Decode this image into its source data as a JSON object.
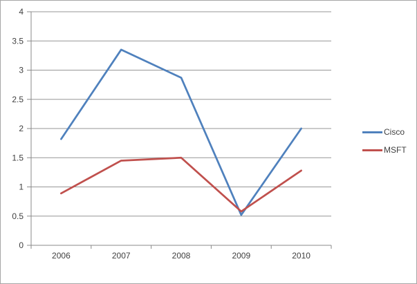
{
  "chart": {
    "background_color": "#ffffff",
    "border_color": "#a6a6a6",
    "gridline_color": "#969696",
    "axis_color": "#898989",
    "label_color": "#3f3f3f",
    "tick_label_font_size": 12
  },
  "chart_data": {
    "type": "line",
    "title": "",
    "categories": [
      "2006",
      "2007",
      "2008",
      "2009",
      "2010"
    ],
    "series": [
      {
        "name": "Cisco",
        "color": "#4F81BD",
        "values": [
          1.82,
          3.35,
          2.87,
          0.52,
          2.0
        ]
      },
      {
        "name": "MSFT",
        "color": "#C0504D",
        "values": [
          0.89,
          1.45,
          1.5,
          0.58,
          1.28
        ]
      }
    ],
    "xlabel": "",
    "ylabel": "",
    "ylim": [
      0,
      4
    ],
    "ytick_step": 0.5,
    "ytick_labels": [
      "0",
      "0.5",
      "1",
      "1.5",
      "2",
      "2.5",
      "3",
      "3.5",
      "4"
    ],
    "grid": true,
    "legend_position": "right"
  }
}
